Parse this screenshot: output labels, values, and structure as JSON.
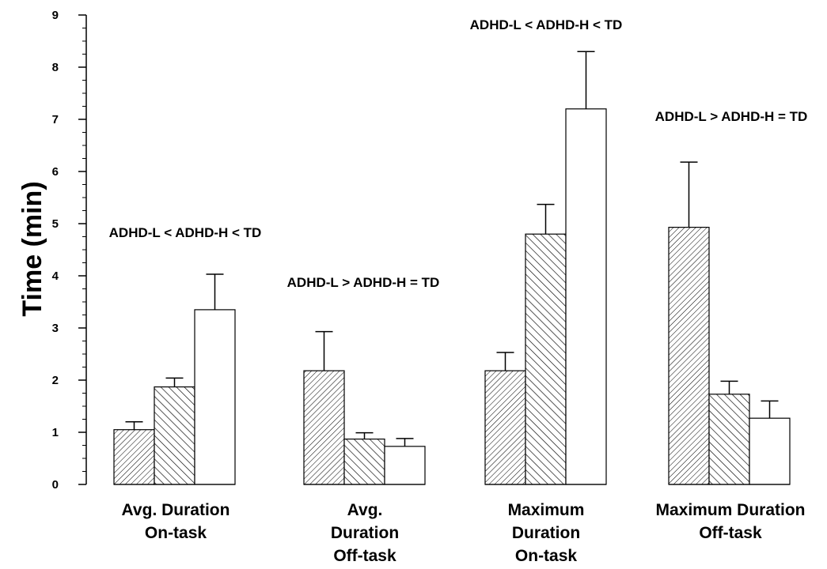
{
  "chart_data": {
    "type": "bar",
    "ylabel": "Time (min)",
    "xlabel": "",
    "ylim": [
      0,
      9
    ],
    "yticks": [
      "0",
      "1",
      "2",
      "3",
      "4",
      "5",
      "6",
      "7",
      "8",
      "9"
    ],
    "grid": false,
    "legend": "none",
    "categories": [
      [
        "Avg. Duration",
        "On-task"
      ],
      [
        "Avg.",
        "Duration",
        "Off-task"
      ],
      [
        "Maximum",
        "Duration",
        "On-task"
      ],
      [
        "Maximum Duration",
        "Off-task"
      ]
    ],
    "series": [
      {
        "pattern": "fine-diagonal-hatch",
        "values": [
          1.05,
          2.18,
          2.18,
          4.93
        ],
        "errors": [
          0.15,
          0.75,
          0.35,
          1.25
        ]
      },
      {
        "pattern": "coarse-diagonal-hatch",
        "values": [
          1.87,
          0.87,
          4.8,
          1.73
        ],
        "errors": [
          0.17,
          0.12,
          0.57,
          0.25
        ]
      },
      {
        "pattern": "white",
        "values": [
          3.35,
          0.73,
          7.2,
          1.27
        ],
        "errors": [
          0.68,
          0.15,
          1.1,
          0.33
        ]
      }
    ],
    "annotations": [
      "ADHD-L < ADHD-H < TD",
      "ADHD-L > ADHD-H = TD",
      "ADHD-L < ADHD-H < TD",
      "ADHD-L > ADHD-H = TD"
    ]
  }
}
